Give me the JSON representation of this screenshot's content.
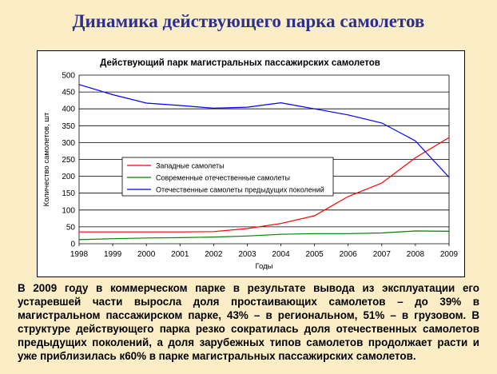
{
  "page": {
    "title": "Динамика действующего парка самолетов",
    "caption": "В 2009 году в коммерческом парке в результате вывода из эксплуатации его устаревшей части выросла доля простаивающих самолетов – до 39% в магистральном пассажирском парке, 43% – в региональном, 51% – в грузовом. В структуре действующего парка резко сократилась доля отечественных самолетов предыдущих поколений, а доля зарубежных типов самолетов продолжает расти и уже приблизилась к60% в парке магистральных пассажирских самолетов."
  },
  "chart_data": {
    "type": "line",
    "title": "Действующий парк магистральных пассажирских самолетов",
    "xlabel": "Годы",
    "ylabel": "Количество самолетов, шт",
    "x": [
      1998,
      1999,
      2000,
      2001,
      2002,
      2003,
      2004,
      2005,
      2006,
      2007,
      2008,
      2009
    ],
    "ylim": [
      0,
      500
    ],
    "yticks": [
      0,
      50,
      100,
      150,
      200,
      250,
      300,
      350,
      400,
      450,
      500
    ],
    "grid": "horizontal",
    "legend_position": "center",
    "series": [
      {
        "name": "Западные самолеты",
        "color": "#ff0000",
        "values": [
          35,
          35,
          35,
          35,
          36,
          45,
          60,
          83,
          140,
          180,
          255,
          315
        ]
      },
      {
        "name": "Современные отечественные самолеты",
        "color": "#008000",
        "values": [
          12,
          15,
          17,
          18,
          20,
          23,
          28,
          30,
          30,
          32,
          38,
          37
        ]
      },
      {
        "name": "Отечественные самолеты предыдущих поколений",
        "color": "#0000ff",
        "values": [
          472,
          442,
          417,
          410,
          402,
          405,
          418,
          400,
          382,
          358,
          305,
          197
        ]
      }
    ]
  }
}
